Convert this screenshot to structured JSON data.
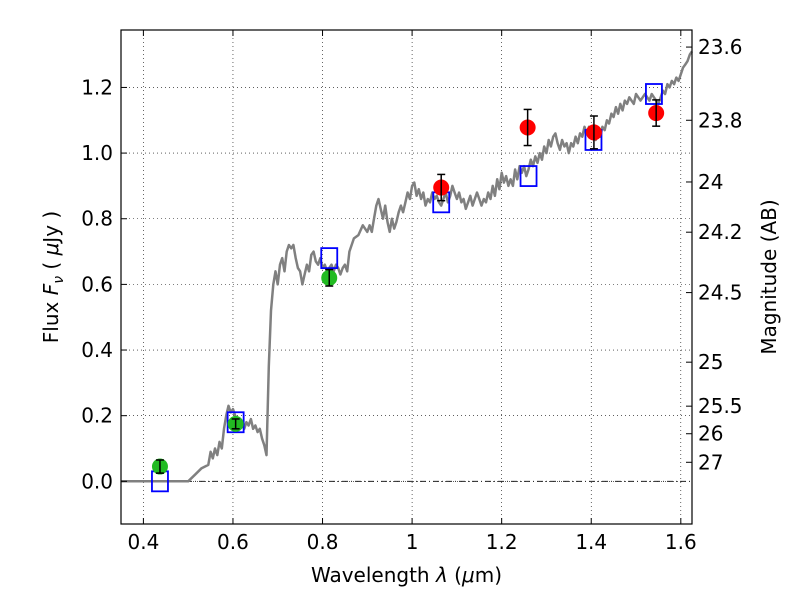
{
  "chart_data": {
    "type": "scatter",
    "title": "",
    "xlabel": {
      "prefix": "Wavelength  ",
      "symbol": "λ",
      "unit_open": " (",
      "unit_mu": "μ",
      "unit_rest": "m)"
    },
    "ylabel": {
      "prefix": "Flux  ",
      "symbol": "F",
      "sub": "ν",
      "unit_open": "  ( ",
      "unit_mu": "μ",
      "unit_rest": "Jy )"
    },
    "y2label": "Magnitude (AB)",
    "xlim": [
      0.35,
      1.625
    ],
    "ylim": [
      -0.13,
      1.375
    ],
    "grid": true,
    "x_ticks": [
      0.4,
      0.6,
      0.8,
      1.0,
      1.2,
      1.4,
      1.6
    ],
    "x_tick_labels": [
      "0.4",
      "0.6",
      "0.8",
      "1",
      "1.2",
      "1.4",
      "1.6"
    ],
    "y_ticks": [
      0.0,
      0.2,
      0.4,
      0.6,
      0.8,
      1.0,
      1.2
    ],
    "y_tick_labels": [
      "0.0",
      "0.2",
      "0.4",
      "0.6",
      "0.8",
      "1.0",
      "1.2"
    ],
    "mag_ticks": [
      {
        "label": "23.6",
        "flux": 1.323
      },
      {
        "label": "23.8",
        "flux": 1.1
      },
      {
        "label": "24",
        "flux": 0.912
      },
      {
        "label": "24.2",
        "flux": 0.759
      },
      {
        "label": "24.5",
        "flux": 0.575
      },
      {
        "label": "25",
        "flux": 0.363
      },
      {
        "label": "25.5",
        "flux": 0.229
      },
      {
        "label": "26",
        "flux": 0.145
      },
      {
        "label": "27",
        "flux": 0.058
      }
    ],
    "series": [
      {
        "name": "model-spectrum",
        "kind": "line",
        "color": "#808080",
        "points": [
          [
            0.35,
            0.0
          ],
          [
            0.5,
            0.0
          ],
          [
            0.515,
            0.02
          ],
          [
            0.53,
            0.04
          ],
          [
            0.545,
            0.05
          ],
          [
            0.55,
            0.09
          ],
          [
            0.555,
            0.07
          ],
          [
            0.56,
            0.1
          ],
          [
            0.565,
            0.08
          ],
          [
            0.57,
            0.12
          ],
          [
            0.575,
            0.1
          ],
          [
            0.58,
            0.16
          ],
          [
            0.585,
            0.2
          ],
          [
            0.59,
            0.23
          ],
          [
            0.595,
            0.21
          ],
          [
            0.6,
            0.22
          ],
          [
            0.605,
            0.2
          ],
          [
            0.61,
            0.19
          ],
          [
            0.615,
            0.17
          ],
          [
            0.62,
            0.18
          ],
          [
            0.625,
            0.16
          ],
          [
            0.63,
            0.18
          ],
          [
            0.635,
            0.17
          ],
          [
            0.64,
            0.19
          ],
          [
            0.645,
            0.16
          ],
          [
            0.65,
            0.17
          ],
          [
            0.655,
            0.15
          ],
          [
            0.66,
            0.16
          ],
          [
            0.665,
            0.13
          ],
          [
            0.67,
            0.11
          ],
          [
            0.675,
            0.08
          ],
          [
            0.68,
            0.35
          ],
          [
            0.685,
            0.52
          ],
          [
            0.69,
            0.6
          ],
          [
            0.695,
            0.64
          ],
          [
            0.7,
            0.6
          ],
          [
            0.705,
            0.66
          ],
          [
            0.71,
            0.68
          ],
          [
            0.715,
            0.64
          ],
          [
            0.72,
            0.7
          ],
          [
            0.725,
            0.72
          ],
          [
            0.73,
            0.71
          ],
          [
            0.735,
            0.72
          ],
          [
            0.74,
            0.68
          ],
          [
            0.745,
            0.65
          ],
          [
            0.75,
            0.64
          ],
          [
            0.755,
            0.6
          ],
          [
            0.76,
            0.63
          ],
          [
            0.765,
            0.66
          ],
          [
            0.77,
            0.64
          ],
          [
            0.775,
            0.69
          ],
          [
            0.78,
            0.7
          ],
          [
            0.785,
            0.67
          ],
          [
            0.79,
            0.66
          ],
          [
            0.795,
            0.68
          ],
          [
            0.8,
            0.65
          ],
          [
            0.805,
            0.66
          ],
          [
            0.81,
            0.64
          ],
          [
            0.815,
            0.65
          ],
          [
            0.82,
            0.66
          ],
          [
            0.825,
            0.64
          ],
          [
            0.83,
            0.66
          ],
          [
            0.835,
            0.65
          ],
          [
            0.84,
            0.63
          ],
          [
            0.845,
            0.65
          ],
          [
            0.85,
            0.66
          ],
          [
            0.855,
            0.64
          ],
          [
            0.86,
            0.7
          ],
          [
            0.87,
            0.74
          ],
          [
            0.88,
            0.75
          ],
          [
            0.89,
            0.78
          ],
          [
            0.9,
            0.76
          ],
          [
            0.905,
            0.78
          ],
          [
            0.91,
            0.76
          ],
          [
            0.915,
            0.8
          ],
          [
            0.92,
            0.84
          ],
          [
            0.925,
            0.86
          ],
          [
            0.93,
            0.83
          ],
          [
            0.935,
            0.8
          ],
          [
            0.94,
            0.84
          ],
          [
            0.945,
            0.79
          ],
          [
            0.95,
            0.76
          ],
          [
            0.955,
            0.8
          ],
          [
            0.96,
            0.77
          ],
          [
            0.965,
            0.79
          ],
          [
            0.97,
            0.82
          ],
          [
            0.975,
            0.84
          ],
          [
            0.98,
            0.82
          ],
          [
            0.985,
            0.85
          ],
          [
            0.99,
            0.88
          ],
          [
            0.995,
            0.86
          ],
          [
            1.0,
            0.9
          ],
          [
            1.005,
            0.91
          ],
          [
            1.01,
            0.87
          ],
          [
            1.015,
            0.89
          ],
          [
            1.02,
            0.86
          ],
          [
            1.025,
            0.88
          ],
          [
            1.03,
            0.84
          ],
          [
            1.035,
            0.86
          ],
          [
            1.04,
            0.85
          ],
          [
            1.045,
            0.88
          ],
          [
            1.05,
            0.86
          ],
          [
            1.055,
            0.87
          ],
          [
            1.06,
            0.85
          ],
          [
            1.065,
            0.84
          ],
          [
            1.07,
            0.86
          ],
          [
            1.075,
            0.88
          ],
          [
            1.08,
            0.85
          ],
          [
            1.085,
            0.87
          ],
          [
            1.09,
            0.9
          ],
          [
            1.095,
            0.88
          ],
          [
            1.1,
            0.86
          ],
          [
            1.105,
            0.88
          ],
          [
            1.11,
            0.85
          ],
          [
            1.115,
            0.86
          ],
          [
            1.12,
            0.83
          ],
          [
            1.125,
            0.85
          ],
          [
            1.13,
            0.87
          ],
          [
            1.135,
            0.84
          ],
          [
            1.14,
            0.86
          ],
          [
            1.145,
            0.88
          ],
          [
            1.15,
            0.86
          ],
          [
            1.155,
            0.84
          ],
          [
            1.16,
            0.86
          ],
          [
            1.165,
            0.85
          ],
          [
            1.17,
            0.88
          ],
          [
            1.175,
            0.86
          ],
          [
            1.18,
            0.9
          ],
          [
            1.185,
            0.87
          ],
          [
            1.19,
            0.92
          ],
          [
            1.195,
            0.89
          ],
          [
            1.2,
            0.94
          ],
          [
            1.205,
            0.91
          ],
          [
            1.21,
            0.93
          ],
          [
            1.215,
            0.9
          ],
          [
            1.22,
            0.92
          ],
          [
            1.225,
            0.9
          ],
          [
            1.23,
            0.95
          ],
          [
            1.235,
            0.92
          ],
          [
            1.24,
            0.96
          ],
          [
            1.245,
            0.94
          ],
          [
            1.25,
            0.96
          ],
          [
            1.255,
            0.93
          ],
          [
            1.26,
            0.95
          ],
          [
            1.265,
            0.98
          ],
          [
            1.27,
            0.96
          ],
          [
            1.275,
            0.99
          ],
          [
            1.28,
            0.97
          ],
          [
            1.285,
            1.0
          ],
          [
            1.29,
            0.98
          ],
          [
            1.295,
            1.02
          ],
          [
            1.3,
            1.0
          ],
          [
            1.305,
            1.04
          ],
          [
            1.31,
            1.02
          ],
          [
            1.315,
            1.05
          ],
          [
            1.32,
            1.06
          ],
          [
            1.325,
            1.03
          ],
          [
            1.33,
            1.01
          ],
          [
            1.335,
            1.04
          ],
          [
            1.34,
            1.02
          ],
          [
            1.345,
            1.03
          ],
          [
            1.35,
            1.0
          ],
          [
            1.355,
            1.03
          ],
          [
            1.36,
            1.02
          ],
          [
            1.365,
            1.05
          ],
          [
            1.37,
            1.03
          ],
          [
            1.375,
            1.06
          ],
          [
            1.38,
            1.05
          ],
          [
            1.385,
            1.08
          ],
          [
            1.39,
            1.06
          ],
          [
            1.395,
            1.08
          ],
          [
            1.4,
            1.05
          ],
          [
            1.405,
            1.07
          ],
          [
            1.41,
            1.04
          ],
          [
            1.415,
            1.06
          ],
          [
            1.42,
            1.05
          ],
          [
            1.425,
            1.08
          ],
          [
            1.43,
            1.07
          ],
          [
            1.435,
            1.1
          ],
          [
            1.44,
            1.09
          ],
          [
            1.445,
            1.12
          ],
          [
            1.45,
            1.11
          ],
          [
            1.455,
            1.14
          ],
          [
            1.46,
            1.12
          ],
          [
            1.465,
            1.15
          ],
          [
            1.47,
            1.13
          ],
          [
            1.475,
            1.16
          ],
          [
            1.48,
            1.15
          ],
          [
            1.485,
            1.17
          ],
          [
            1.49,
            1.16
          ],
          [
            1.495,
            1.15
          ],
          [
            1.5,
            1.18
          ],
          [
            1.505,
            1.17
          ],
          [
            1.51,
            1.16
          ],
          [
            1.515,
            1.17
          ],
          [
            1.52,
            1.18
          ],
          [
            1.525,
            1.17
          ],
          [
            1.53,
            1.16
          ],
          [
            1.535,
            1.18
          ],
          [
            1.54,
            1.17
          ],
          [
            1.545,
            1.16
          ],
          [
            1.55,
            1.15
          ],
          [
            1.555,
            1.17
          ],
          [
            1.56,
            1.19
          ],
          [
            1.565,
            1.18
          ],
          [
            1.57,
            1.21
          ],
          [
            1.575,
            1.2
          ],
          [
            1.58,
            1.22
          ],
          [
            1.585,
            1.21
          ],
          [
            1.59,
            1.23
          ],
          [
            1.595,
            1.22
          ],
          [
            1.6,
            1.24
          ],
          [
            1.605,
            1.26
          ],
          [
            1.61,
            1.27
          ],
          [
            1.615,
            1.28
          ],
          [
            1.62,
            1.3
          ],
          [
            1.625,
            1.31
          ]
        ]
      },
      {
        "name": "model-photometry",
        "kind": "square-marker",
        "color": "#0000ff",
        "points": [
          [
            0.437,
            0.0
          ],
          [
            0.606,
            0.18
          ],
          [
            0.815,
            0.68
          ],
          [
            1.065,
            0.85
          ],
          [
            1.26,
            0.93
          ],
          [
            1.405,
            1.04
          ],
          [
            1.54,
            1.18
          ]
        ]
      },
      {
        "name": "observed-green",
        "kind": "circle-marker",
        "color": "#22bb22",
        "points": [
          {
            "x": 0.437,
            "y": 0.045,
            "err": 0.02
          },
          {
            "x": 0.606,
            "y": 0.175,
            "err": 0.015
          },
          {
            "x": 0.815,
            "y": 0.62,
            "err": 0.025
          }
        ]
      },
      {
        "name": "observed-red",
        "kind": "circle-marker",
        "color": "#ff0000",
        "points": [
          {
            "x": 1.065,
            "y": 0.895,
            "err": 0.04
          },
          {
            "x": 1.258,
            "y": 1.078,
            "err": 0.055
          },
          {
            "x": 1.406,
            "y": 1.063,
            "err": 0.05
          },
          {
            "x": 1.545,
            "y": 1.122,
            "err": 0.04
          }
        ]
      }
    ]
  }
}
